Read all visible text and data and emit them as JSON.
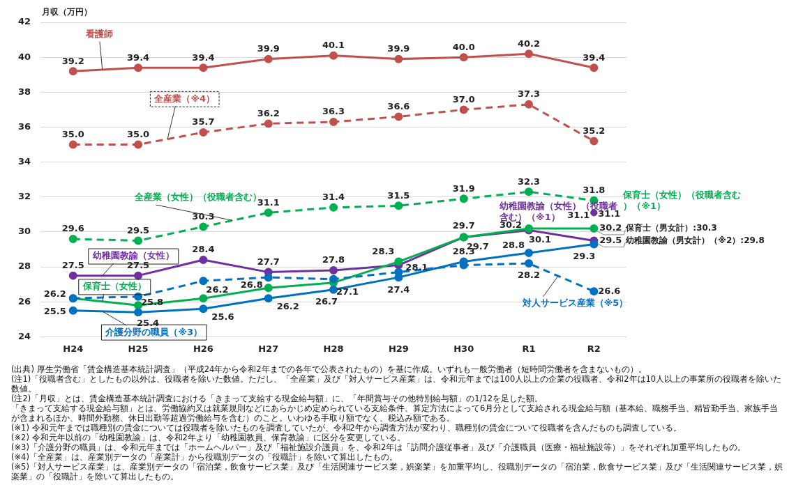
{
  "chart_data": {
    "type": "line",
    "ylabel": "月収（万円）",
    "categories": [
      "H24",
      "H25",
      "H26",
      "H27",
      "H28",
      "H29",
      "H30",
      "R1",
      "R2"
    ],
    "ylim": [
      24,
      42
    ],
    "yticks": [
      24,
      26,
      28,
      30,
      32,
      34,
      36,
      38,
      40,
      42
    ],
    "grid": "y",
    "legend": false,
    "marker": "circle",
    "series": [
      {
        "name": "看護師",
        "color": "#c0504d",
        "line_style": "solid",
        "values": [
          39.2,
          39.4,
          39.4,
          39.9,
          40.1,
          39.9,
          40.0,
          40.2,
          39.4
        ],
        "value_labels": [
          "39.2",
          "39.4",
          "39.4",
          "39.9",
          "40.1",
          "39.9",
          "40.0",
          "40.2",
          "39.4"
        ]
      },
      {
        "name": "全産業（※4）",
        "color": "#c0504d",
        "line_style": "dashed",
        "values": [
          35.0,
          35.0,
          35.7,
          36.2,
          36.3,
          36.6,
          37.0,
          37.3,
          35.2
        ],
        "value_labels": [
          "35.0",
          "35.0",
          "35.7",
          "36.2",
          "36.3",
          "36.6",
          "37.0",
          "37.3",
          "35.2"
        ]
      },
      {
        "name": "全産業（女性）（役職者含む）",
        "color": "#00b050",
        "line_style": "dashed",
        "values": [
          29.6,
          29.5,
          30.3,
          31.1,
          31.4,
          31.5,
          31.9,
          32.3,
          31.8
        ],
        "value_labels": [
          "29.6",
          "29.5",
          "30.3",
          "31.1",
          "31.4",
          "31.5",
          "31.9",
          "32.3",
          "31.8"
        ]
      },
      {
        "name": "対人サービス産業（※5）",
        "color": "#0070c0",
        "line_style": "dashed",
        "values": [
          26.2,
          26.3,
          27.2,
          27.4,
          27.3,
          27.7,
          28.1,
          28.2,
          26.6
        ],
        "value_labels": [
          null,
          null,
          null,
          null,
          null,
          null,
          null,
          "28.2",
          "26.6"
        ]
      },
      {
        "name": "介護分野の職員（※3）",
        "color": "#0070c0",
        "line_style": "solid",
        "values": [
          25.5,
          25.4,
          25.6,
          26.2,
          26.7,
          27.4,
          28.3,
          28.8,
          29.3
        ],
        "value_labels": [
          "25.5",
          "25.4",
          "25.6",
          "26.2",
          "26.7",
          "27.4",
          "28.3",
          "28.8",
          "29.3"
        ]
      },
      {
        "name": "保育士（女性）",
        "color": "#00b050",
        "line_style": "solid",
        "values": [
          26.2,
          25.8,
          26.2,
          26.8,
          27.1,
          28.3,
          29.7,
          30.2,
          30.2
        ],
        "value_labels": [
          "26.2",
          "25.8",
          "26.2",
          "26.8",
          "27.1",
          "28.3",
          "29.7",
          "30.2",
          "30.2"
        ]
      },
      {
        "name": "幼稚園教諭（女性）",
        "color": "#7030a0",
        "line_style": "solid",
        "values": [
          27.5,
          27.5,
          28.4,
          27.7,
          27.8,
          28.1,
          29.7,
          30.1,
          29.5
        ],
        "value_labels": [
          "27.5",
          "27.5",
          "28.4",
          "27.7",
          "27.8",
          "28.1",
          "29.7",
          "30.1",
          "29.5"
        ]
      },
      {
        "name": "幼稚園教諭（女性）（役職者含む）（※1）",
        "type": "scatter",
        "color": "#7030a0",
        "x": [
          "R2"
        ],
        "values": [
          31.1
        ],
        "value_labels": [
          "31.1"
        ]
      },
      {
        "name": "保育士（女性）（役職者含む）（※1）",
        "type": "scatter",
        "color": "#00b050",
        "x": [
          "R2"
        ],
        "values": [
          31.1
        ],
        "value_labels": [
          "31.1"
        ]
      }
    ],
    "annotations": [
      {
        "text": "保育士（男女計）:30.3",
        "x": "R2",
        "y": 30.2
      },
      {
        "text": "幼稚園教諭（男女計）（※2）:29.8",
        "x": "R2",
        "y": 29.5
      },
      "(出典) 厚生労働省「賃金構造基本統計調査」（平成24年から令和2年までの各年で公表されたもの）を基に作成。いずれも一般労働者（短時間労働者を含まないもの）。",
      "(注1)「役職者含む」としたもの以外は、役職者を除いた数値。ただし、「全産業」及び「対人サービス産業」は、令和元年までは100人以上の企業の役職者、令和2年は10人以上の事業所の役職者を除いた数値。",
      "(注2)「月収」とは、賃金構造基本統計調査における「きまって支給する現金給与額」に、「年間賞与その他特別給与額」の1/12を足した額。",
      "「きまって支給する現金給与額」とは、労働協約又は就業規則などにあらかじめ定められている支給条件、算定方法によって6月分として支給される現金給与額（基本給、職務手当、精皆勤手当、家族手当が含まれるほか、時間外勤務、休日出勤等超過労働給与を含む）のこと。いわゆる手取り額でなく、税込み額である。",
      "(※1) 令和元年までは職種別の賃金については役職者を除いたものを調査していたが、令和2年から調査方法が変わり、職種別の賃金について役職者を含んだものも調査している。",
      "(※2) 令和元年以前の「幼稚園教諭」は、令和2年より「幼稚園教員、保育教諭」に区分を変更している。",
      "(※3)「介護分野の職員」は、令和元年までは「ホームヘルパー」及び「福祉施設介護員」を、令和2年は「訪問介護従事者」及び「介護職員（医療・福祉施設等）」をそれぞれ加重平均したもの。",
      "(※4)「全産業」は、産業別データの「産業計」から役職別データの「役職計」を除いて算出したもの。",
      "(※5)「対人サービス産業」は、産業別データの「宿泊業，飲食サービス業」及び「生活関連サービス業，娯楽業」を加重平均し、役職別データの「宿泊業，飲食サービス業」及び「生活関連サービス業，娯楽業」の「役職計」を除いて算出したもの。"
    ]
  }
}
